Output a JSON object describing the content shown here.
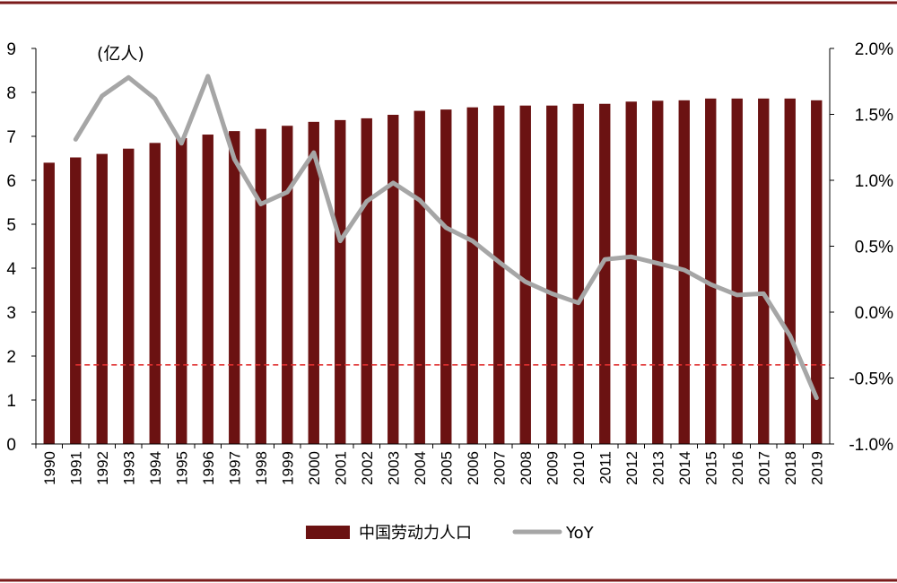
{
  "chart_data": {
    "type": "bar",
    "left_axis_unit": "(亿人)",
    "categories": [
      "1990",
      "1991",
      "1992",
      "1993",
      "1994",
      "1995",
      "1996",
      "1997",
      "1998",
      "1999",
      "2000",
      "2001",
      "2002",
      "2003",
      "2004",
      "2005",
      "2006",
      "2007",
      "2008",
      "2009",
      "2010",
      "2011",
      "2012",
      "2013",
      "2014",
      "2015",
      "2016",
      "2017",
      "2018",
      "2019"
    ],
    "series": [
      {
        "name": "中国劳动力人口",
        "type": "bar",
        "axis": "left",
        "color": "#6B1212",
        "values": [
          6.4,
          6.52,
          6.6,
          6.72,
          6.85,
          6.96,
          7.04,
          7.12,
          7.17,
          7.24,
          7.33,
          7.37,
          7.41,
          7.49,
          7.58,
          7.61,
          7.66,
          7.7,
          7.7,
          7.7,
          7.74,
          7.74,
          7.79,
          7.81,
          7.82,
          7.86,
          7.86,
          7.86,
          7.86,
          7.82
        ]
      },
      {
        "name": "YoY",
        "type": "line",
        "axis": "right",
        "color": "#A6A6A6",
        "values": [
          null,
          1.31,
          1.64,
          1.78,
          1.62,
          1.28,
          1.79,
          1.16,
          0.82,
          0.91,
          1.21,
          0.54,
          0.84,
          0.98,
          0.85,
          0.64,
          0.54,
          0.38,
          0.23,
          0.14,
          0.07,
          0.4,
          0.42,
          0.37,
          0.32,
          0.21,
          0.13,
          0.14,
          -0.18,
          -0.65
        ]
      }
    ],
    "left_axis": {
      "min": 0,
      "max": 9,
      "ticks": [
        "0",
        "1",
        "2",
        "3",
        "4",
        "5",
        "6",
        "7",
        "8",
        "9"
      ]
    },
    "right_axis": {
      "min": -1.0,
      "max": 2.0,
      "ticks": [
        "-1.0%",
        "-0.5%",
        "0.0%",
        "0.5%",
        "1.0%",
        "1.5%",
        "2.0%"
      ]
    },
    "reference_line": {
      "axis": "right",
      "value": -0.4,
      "color": "#E03030",
      "style": "dashed"
    },
    "legend_position": "bottom-center",
    "frame_color": "#7A1A1A",
    "grid": false
  }
}
